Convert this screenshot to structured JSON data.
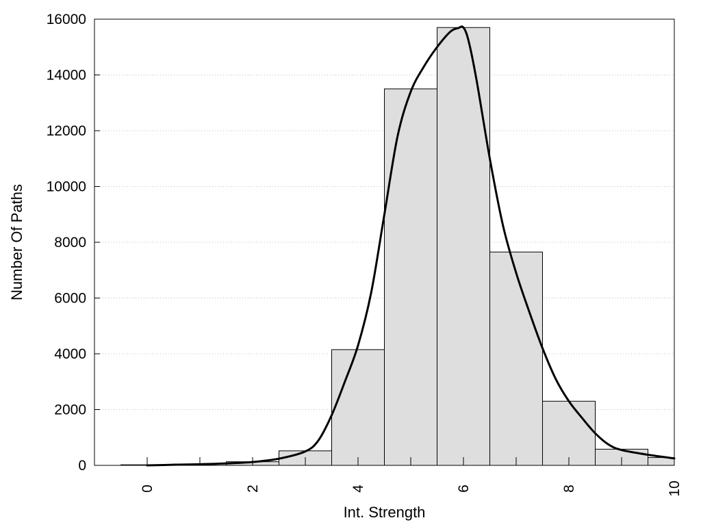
{
  "chart_data": {
    "type": "bar",
    "title": "",
    "xlabel": "Int. Strength",
    "ylabel": "Number Of Paths",
    "xlim": [
      -1,
      10
    ],
    "ylim": [
      0,
      16000
    ],
    "x_ticks": [
      0,
      2,
      4,
      6,
      8,
      10
    ],
    "y_ticks": [
      0,
      2000,
      4000,
      6000,
      8000,
      10000,
      12000,
      14000,
      16000
    ],
    "grid": "horizontal dotted",
    "bin_width": 1,
    "bins": [
      {
        "x": 0,
        "value": 20
      },
      {
        "x": 1,
        "value": 50
      },
      {
        "x": 2,
        "value": 130
      },
      {
        "x": 3,
        "value": 520
      },
      {
        "x": 4,
        "value": 4150
      },
      {
        "x": 5,
        "value": 13500
      },
      {
        "x": 6,
        "value": 15700
      },
      {
        "x": 7,
        "value": 7650
      },
      {
        "x": 8,
        "value": 2300
      },
      {
        "x": 9,
        "value": 580
      },
      {
        "x": 10,
        "value": 280
      }
    ],
    "curve": {
      "x": [
        0,
        0.5,
        1,
        1.5,
        2,
        2.5,
        3,
        3.25,
        3.5,
        3.75,
        4,
        4.25,
        4.5,
        4.75,
        5,
        5.25,
        5.5,
        5.75,
        5.9,
        6,
        6.1,
        6.25,
        6.5,
        6.75,
        7,
        7.25,
        7.5,
        7.75,
        8,
        8.25,
        8.5,
        8.75,
        9,
        9.5,
        10
      ],
      "y": [
        0,
        20,
        40,
        70,
        120,
        240,
        500,
        900,
        1800,
        3000,
        4300,
        6200,
        9000,
        11800,
        13400,
        14300,
        15000,
        15550,
        15680,
        15700,
        15200,
        13800,
        11000,
        8600,
        6900,
        5500,
        4200,
        3100,
        2300,
        1700,
        1150,
        750,
        550,
        380,
        250
      ]
    }
  }
}
